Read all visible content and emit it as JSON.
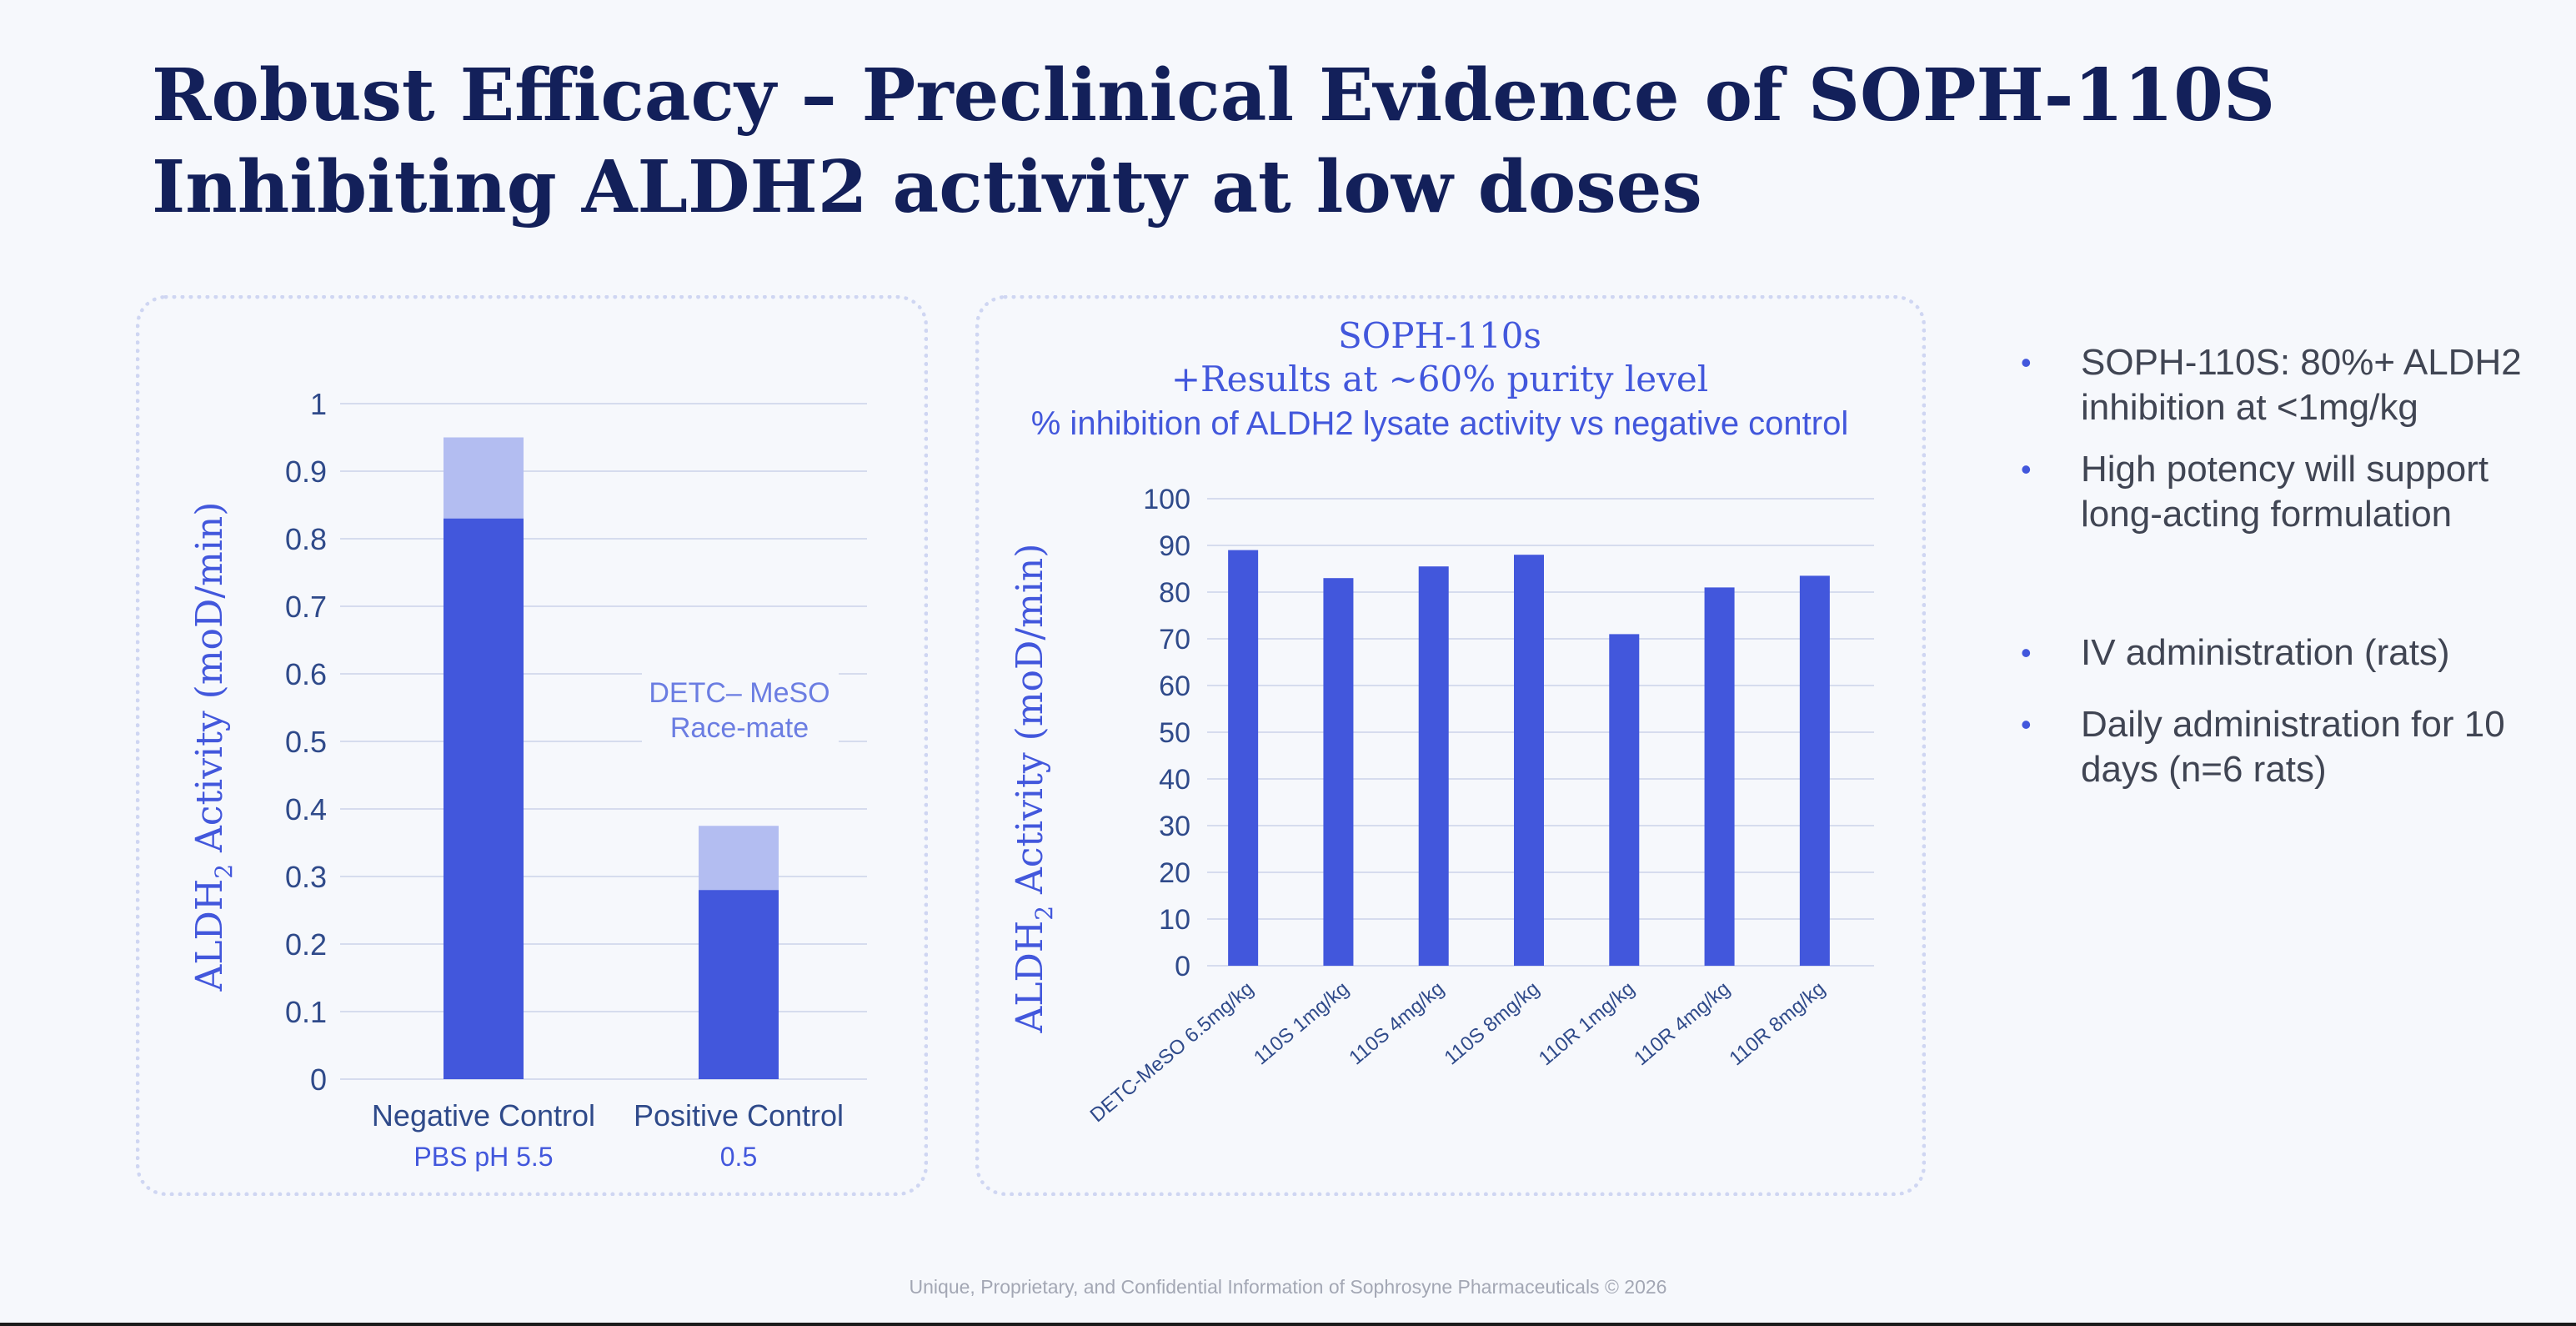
{
  "title_line1": "Robust Efficacy – Preclinical Evidence of SOPH-110S",
  "title_line2": "Inhibiting ALDH2 activity at low doses",
  "colors": {
    "bar_dark": "#4257dc",
    "bar_light": "#b3bdf1",
    "axis_text": "#2f4a8a",
    "accent_text": "#4257dc",
    "grid": "#d6dcee"
  },
  "chart_data": [
    {
      "type": "bar",
      "stacked": true,
      "ylabel_main": "ALDH",
      "ylabel_sub": "2",
      "ylabel_rest": " Activity (moD/min)",
      "ylim": [
        0,
        1
      ],
      "yticks": [
        "0",
        "0.1",
        "0.2",
        "0.3",
        "0.4",
        "0.5",
        "0.6",
        "0.7",
        "0.8",
        "0.9",
        "1"
      ],
      "categories": [
        {
          "label": "Negative Control",
          "sublabel": "PBS pH 5.5"
        },
        {
          "label": "Positive Control",
          "sublabel": "0.5"
        }
      ],
      "values_dark": [
        0.83,
        0.28
      ],
      "values_total": [
        0.95,
        0.375
      ],
      "annotation_line1": "DETC– MeSO",
      "annotation_line2": "Race-mate",
      "grid": true
    },
    {
      "type": "bar",
      "title_line1": "SOPH-110s",
      "title_line2": "+Results at ~60% purity level",
      "title_line3": "% inhibition of ALDH2 lysate activity vs negative control",
      "ylabel_main": "ALDH",
      "ylabel_sub": "2",
      "ylabel_rest": " Activity (moD/min)",
      "ylim": [
        0,
        100
      ],
      "yticks": [
        "0",
        "10",
        "20",
        "30",
        "40",
        "50",
        "60",
        "70",
        "80",
        "90",
        "100"
      ],
      "categories": [
        "DETC-MeSO 6.5mg/kg",
        "110S 1mg/kg",
        "110S 4mg/kg",
        "110S 8mg/kg",
        "110R 1mg/kg",
        "110R 4mg/kg",
        "110R 8mg/kg"
      ],
      "values": [
        89,
        83,
        85.5,
        88,
        71,
        81,
        83.5
      ],
      "grid": true
    }
  ],
  "bullets": [
    "SOPH-110S: 80%+ ALDH2 inhibition at <1mg/kg",
    "High potency will support long-acting formulation",
    "IV administration (rats)",
    "Daily administration for 10 days (n=6 rats)"
  ],
  "bullet_glyph": "•",
  "footer": "Unique, Proprietary, and Confidential Information of Sophrosyne Pharmaceuticals © 2026"
}
